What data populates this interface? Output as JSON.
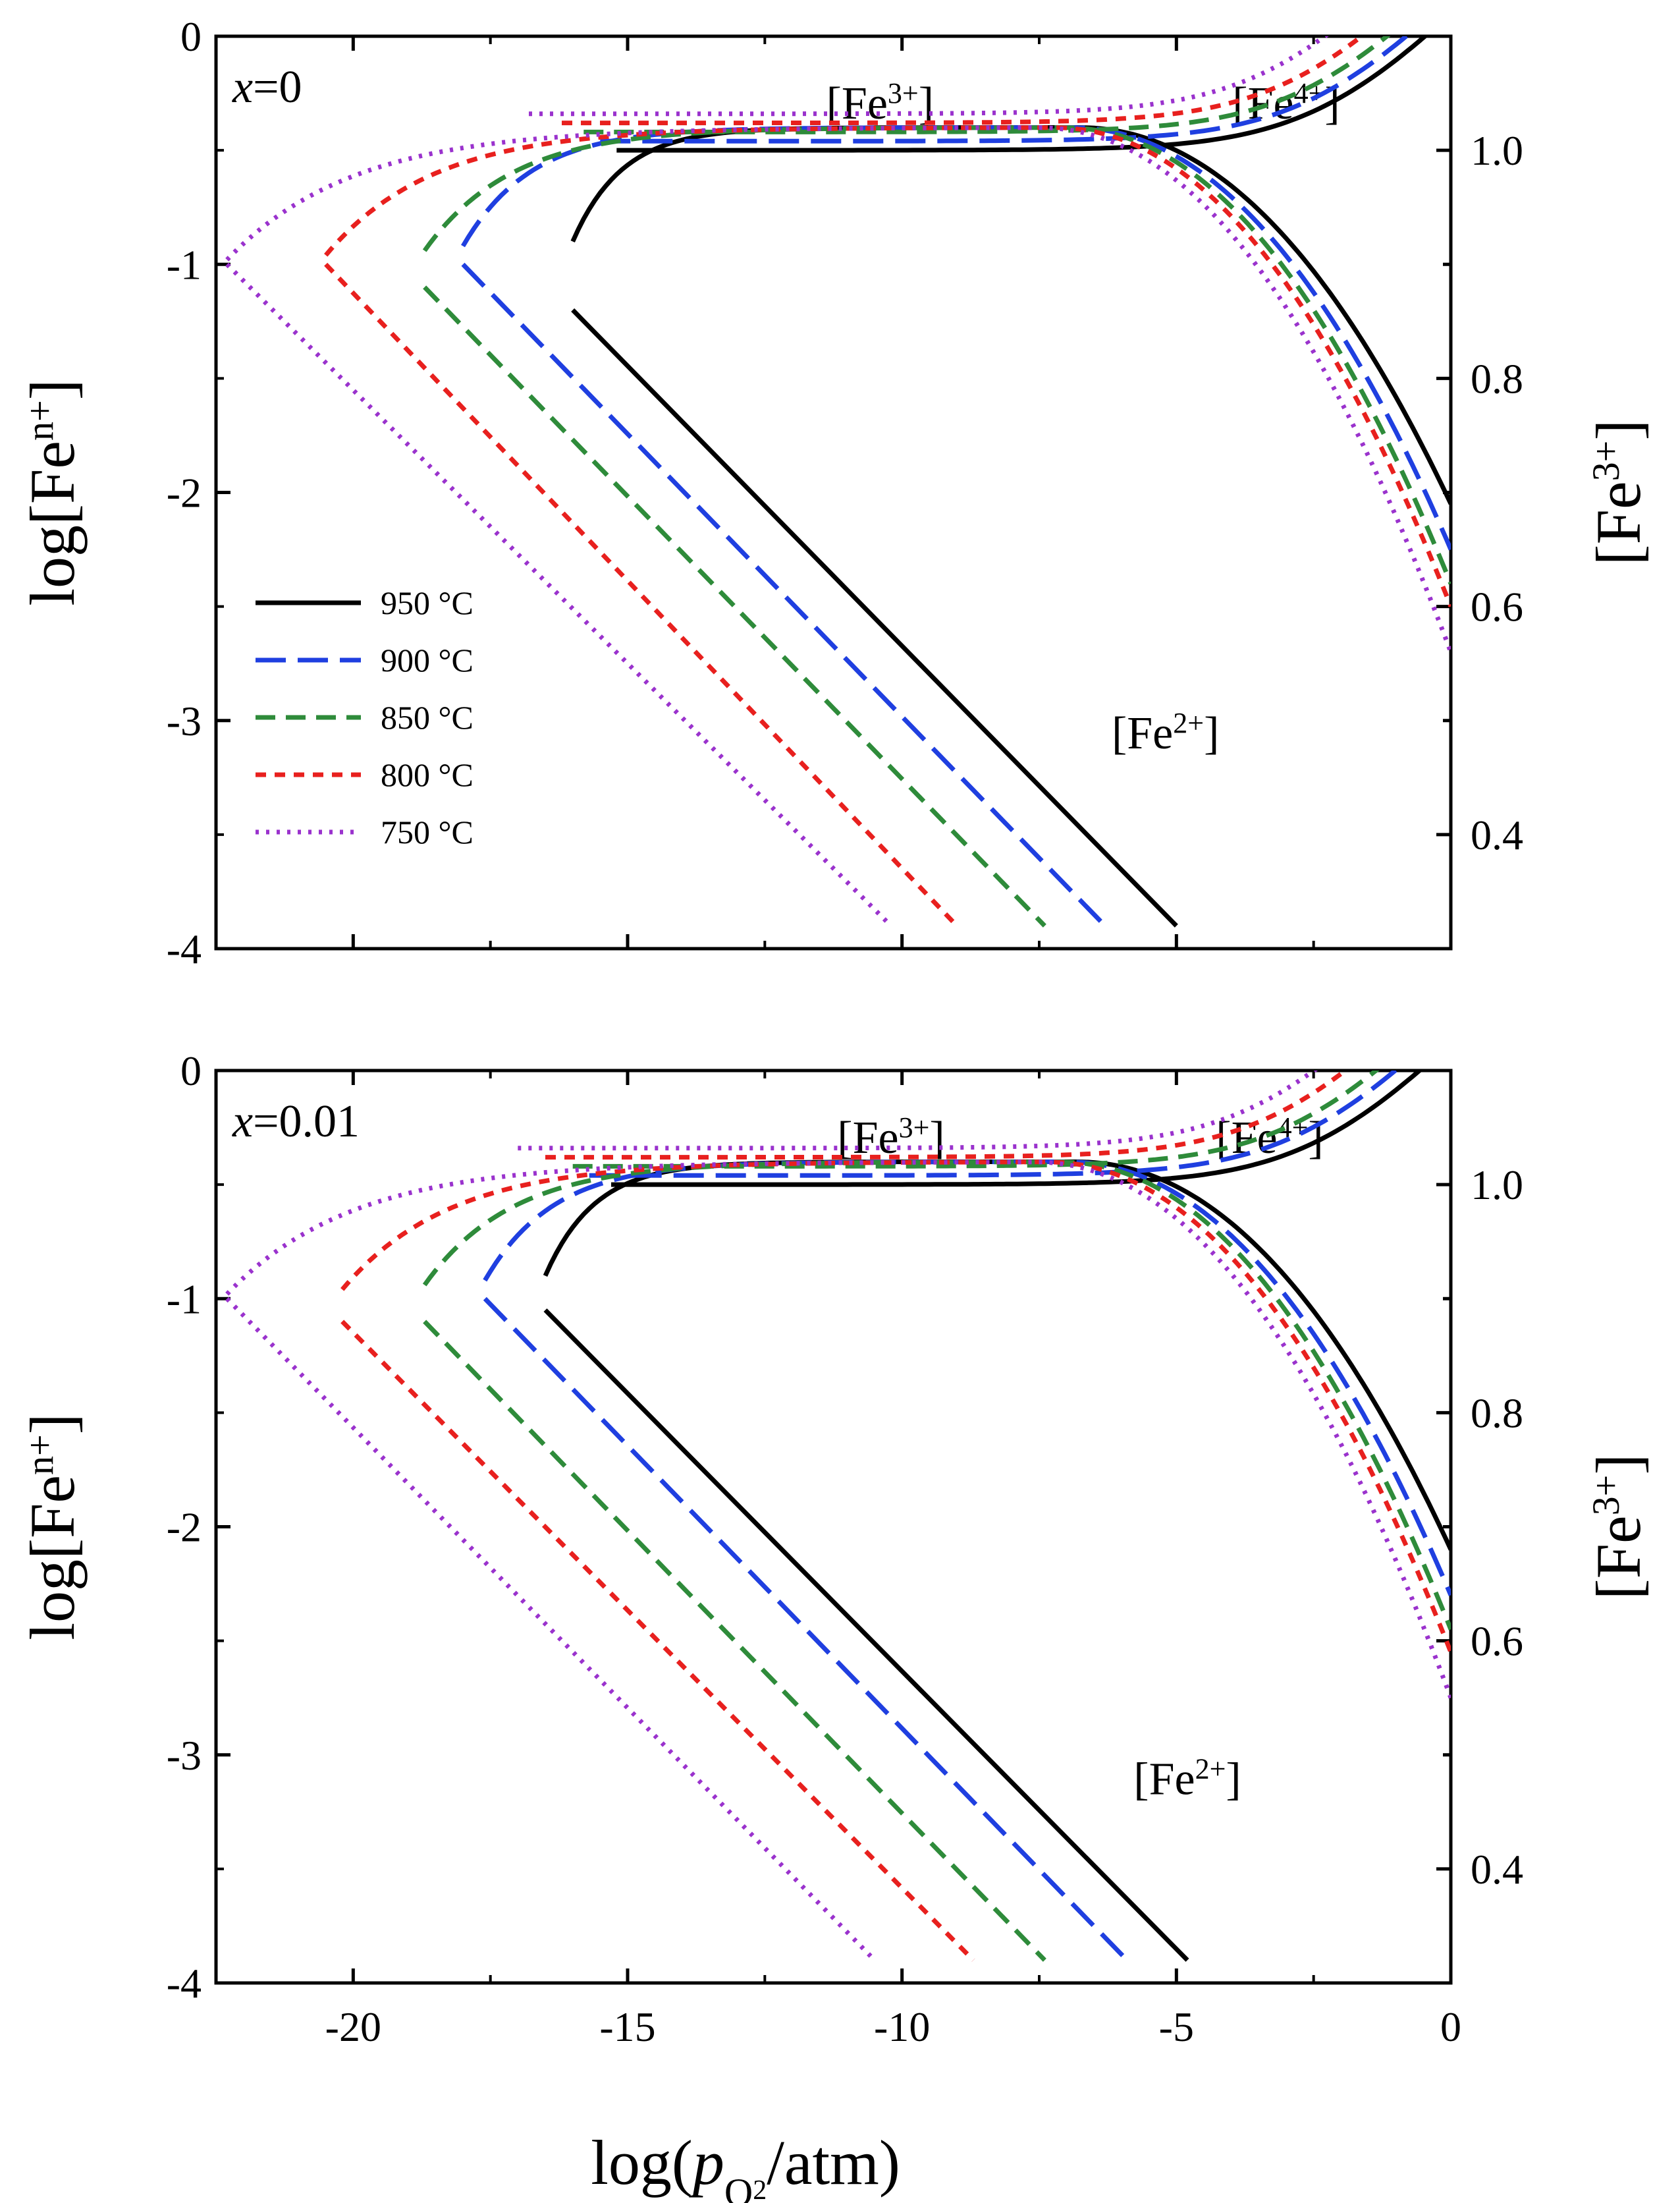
{
  "chart_data": [
    {
      "type": "line",
      "panel_label": "x=0",
      "panel_label_var": "x",
      "panel_label_val": "=0",
      "xlim": [
        -22.5,
        0
      ],
      "ylim_left": [
        -4,
        0
      ],
      "ylim_right": [
        0.3,
        1.1
      ],
      "xlabel_main": "log(",
      "xlabel_var": "p",
      "xlabel_sub": "O",
      "xlabel_subsub": "2",
      "xlabel_end": "/atm)",
      "ylabel_left_main": "log[Fe",
      "ylabel_left_sup": "n+",
      "ylabel_left_end": "]",
      "ylabel_right_main": "[Fe",
      "ylabel_right_sup": "3+",
      "ylabel_right_end": "]",
      "xticks": [
        -20,
        -15,
        -10,
        -5,
        0
      ],
      "xtick_labels": [
        "-20",
        "-15",
        "-10",
        "-5",
        "0"
      ],
      "yticks_left": [
        -4,
        -3,
        -2,
        -1,
        0
      ],
      "ytick_labels_left": [
        "-4",
        "-3",
        "-2",
        "-1",
        "0"
      ],
      "yticks_right": [
        0.4,
        0.6,
        0.8,
        1.0
      ],
      "ytick_labels_right": [
        "0.4",
        "0.6",
        "0.8",
        "1.0"
      ],
      "annotations": {
        "fe3": {
          "main": "[Fe",
          "sup": "3+",
          "end": "]"
        },
        "fe4": {
          "main": "[Fe",
          "sup": "4+",
          "end": "]"
        },
        "fe2": {
          "main": "[Fe",
          "sup": "2+",
          "end": "]"
        }
      },
      "series": [
        {
          "name": "950 °C",
          "color": "#000000",
          "dash": "solid",
          "x_start": -16.0,
          "x_ox": -15.2,
          "fe2_x": [
            -16.0,
            -5.0
          ],
          "fe2_y": [
            -1.2,
            -3.9
          ]
        },
        {
          "name": "900 °C",
          "color": "#1f3fe0",
          "dash": "long",
          "x_start": -18.0,
          "x_ox": -15.5,
          "fe2_x": [
            -18.0,
            -6.3
          ],
          "fe2_y": [
            -1.0,
            -3.9
          ]
        },
        {
          "name": "850 °C",
          "color": "#2e8b3a",
          "dash": "medium",
          "x_start": -18.7,
          "x_ox": -15.8,
          "fe2_x": [
            -18.7,
            -7.4
          ],
          "fe2_y": [
            -1.1,
            -3.9
          ]
        },
        {
          "name": "800 °C",
          "color": "#e8201e",
          "dash": "short",
          "x_start": -20.5,
          "x_ox": -16.2,
          "fe2_x": [
            -20.5,
            -9.0
          ],
          "fe2_y": [
            -1.0,
            -3.9
          ]
        },
        {
          "name": "750 °C",
          "color": "#9a32cd",
          "dash": "dot",
          "x_start": -22.3,
          "x_ox": -16.8,
          "fe2_x": [
            -22.3,
            -10.2
          ],
          "fe2_y": [
            -1.0,
            -3.9
          ]
        }
      ]
    },
    {
      "type": "line",
      "panel_label": "x=0.01",
      "panel_label_var": "x",
      "panel_label_val": "=0.01",
      "xlim": [
        -22.5,
        0
      ],
      "ylim_left": [
        -4,
        0
      ],
      "ylim_right": [
        0.3,
        1.1
      ],
      "xticks": [
        -20,
        -15,
        -10,
        -5,
        0
      ],
      "xtick_labels": [
        "-20",
        "-15",
        "-10",
        "-5",
        "0"
      ],
      "yticks_left": [
        -4,
        -3,
        -2,
        -1,
        0
      ],
      "ytick_labels_left": [
        "-4",
        "-3",
        "-2",
        "-1",
        "0"
      ],
      "yticks_right": [
        0.4,
        0.6,
        0.8,
        1.0
      ],
      "ytick_labels_right": [
        "0.4",
        "0.6",
        "0.8",
        "1.0"
      ],
      "series": [
        {
          "name": "950 °C",
          "color": "#000000",
          "dash": "solid",
          "x_start": -16.5,
          "x_ox": -15.3,
          "fe2_x": [
            -16.5,
            -4.8
          ],
          "fe2_y": [
            -1.05,
            -3.9
          ]
        },
        {
          "name": "900 °C",
          "color": "#1f3fe0",
          "dash": "long",
          "x_start": -17.6,
          "x_ox": -15.7,
          "fe2_x": [
            -17.6,
            -5.9
          ],
          "fe2_y": [
            -1.0,
            -3.9
          ]
        },
        {
          "name": "850 °C",
          "color": "#2e8b3a",
          "dash": "medium",
          "x_start": -18.7,
          "x_ox": -16.0,
          "fe2_x": [
            -18.7,
            -7.4
          ],
          "fe2_y": [
            -1.1,
            -3.9
          ]
        },
        {
          "name": "800 °C",
          "color": "#e8201e",
          "dash": "short",
          "x_start": -20.2,
          "x_ox": -16.5,
          "fe2_x": [
            -20.2,
            -8.7
          ],
          "fe2_y": [
            -1.1,
            -3.9
          ]
        },
        {
          "name": "750 °C",
          "color": "#9a32cd",
          "dash": "dot",
          "x_start": -22.3,
          "x_ox": -17.0,
          "fe2_x": [
            -22.3,
            -10.5
          ],
          "fe2_y": [
            -1.0,
            -3.9
          ]
        }
      ]
    }
  ]
}
